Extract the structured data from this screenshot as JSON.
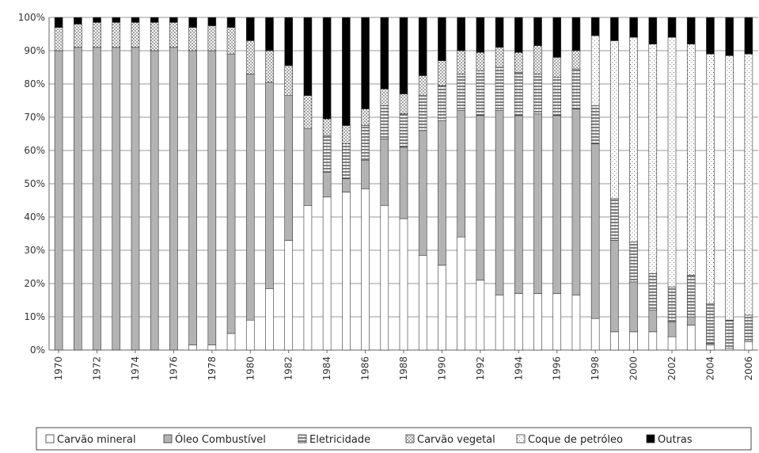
{
  "chart_data": {
    "type": "bar",
    "stacked": true,
    "percent": true,
    "title": "",
    "xlabel": "",
    "ylabel": "",
    "ylim": [
      0,
      100
    ],
    "yticks": [
      "0%",
      "10%",
      "20%",
      "30%",
      "40%",
      "50%",
      "60%",
      "70%",
      "80%",
      "90%",
      "100%"
    ],
    "x_tick_labels": [
      "1970",
      "1972",
      "1974",
      "1976",
      "1978",
      "1980",
      "1982",
      "1984",
      "1986",
      "1988",
      "1990",
      "1992",
      "1994",
      "1996",
      "1998",
      "2000",
      "2002",
      "2004",
      "2006"
    ],
    "grid": "horizontal",
    "legend_position": "bottom",
    "categories": [
      "1970",
      "1971",
      "1972",
      "1973",
      "1974",
      "1975",
      "1976",
      "1977",
      "1978",
      "1979",
      "1980",
      "1981",
      "1982",
      "1983",
      "1984",
      "1985",
      "1986",
      "1987",
      "1988",
      "1989",
      "1990",
      "1991",
      "1992",
      "1993",
      "1994",
      "1995",
      "1996",
      "1997",
      "1998",
      "1999",
      "2000",
      "2001",
      "2002",
      "2003",
      "2004",
      "2005",
      "2006"
    ],
    "series": [
      {
        "name": "Carvão mineral",
        "pattern": "white",
        "color": "#ffffff",
        "values": [
          0,
          0,
          0,
          0,
          0,
          0,
          0,
          1.5,
          1.5,
          5,
          9,
          18.5,
          33,
          43.5,
          46,
          47.5,
          48.5,
          43.5,
          39.5,
          28.5,
          25.5,
          34,
          21,
          16.5,
          17,
          17,
          17,
          16.5,
          9.5,
          5.5,
          5.5,
          5.5,
          4,
          7.5,
          1.5,
          0.5,
          2.5
        ]
      },
      {
        "name": "Óleo Combustível",
        "pattern": "gray",
        "color": "#b3b3b3",
        "values": [
          90,
          91,
          91,
          91,
          91,
          90,
          91,
          88.5,
          88.5,
          84,
          74,
          62,
          43.5,
          23,
          7.5,
          4,
          8.5,
          20,
          21.5,
          37.5,
          43.5,
          38,
          49.5,
          55.5,
          53.5,
          54,
          53.5,
          56,
          52.5,
          27.5,
          15,
          6.5,
          4.5,
          2.5,
          0.5,
          0,
          0
        ]
      },
      {
        "name": "Eletricidade",
        "pattern": "horizontal-lines",
        "color": "#555555",
        "values": [
          0,
          0,
          0,
          0,
          0,
          0,
          0,
          0,
          0,
          0,
          0,
          0,
          0,
          0,
          11,
          10.5,
          10.5,
          10,
          10,
          10.5,
          10.5,
          11,
          13.5,
          13,
          13,
          12,
          11.5,
          12,
          11.5,
          12.5,
          12,
          11,
          10.5,
          12.5,
          12,
          8.5,
          8
        ]
      },
      {
        "name": "Carvão vegetal",
        "pattern": "dots",
        "color": "#999999",
        "values": [
          7,
          7,
          7.5,
          7.5,
          7.5,
          8.5,
          7.5,
          7,
          7.5,
          8,
          10,
          9.5,
          9,
          10,
          5,
          5.5,
          5,
          5,
          6,
          6,
          7.5,
          7,
          5.5,
          6,
          6,
          8.5,
          6,
          5.5,
          0,
          0,
          0,
          0,
          0,
          0,
          0,
          0,
          0
        ]
      },
      {
        "name": "Coque de petróleo",
        "pattern": "fine-dots",
        "color": "#dddddd",
        "values": [
          0,
          0,
          0,
          0,
          0,
          0,
          0,
          0,
          0,
          0,
          0,
          0,
          0,
          0,
          0,
          0,
          0,
          0,
          0,
          0,
          0,
          0,
          0,
          0,
          0,
          0,
          0,
          0,
          21,
          47.5,
          61.5,
          69,
          75,
          69.5,
          75,
          79.5,
          78.5
        ]
      },
      {
        "name": "Outras",
        "pattern": "black",
        "color": "#000000",
        "values": [
          3,
          2,
          1.5,
          1.5,
          1.5,
          1.5,
          1.5,
          3,
          2.5,
          3,
          7,
          10,
          14.5,
          23.5,
          30.5,
          32.5,
          27.5,
          21.5,
          23,
          17.5,
          13,
          10,
          10.5,
          9,
          10.5,
          8.5,
          12,
          10,
          5.5,
          7,
          6,
          8,
          6,
          8,
          11,
          11.5,
          11
        ]
      }
    ]
  }
}
